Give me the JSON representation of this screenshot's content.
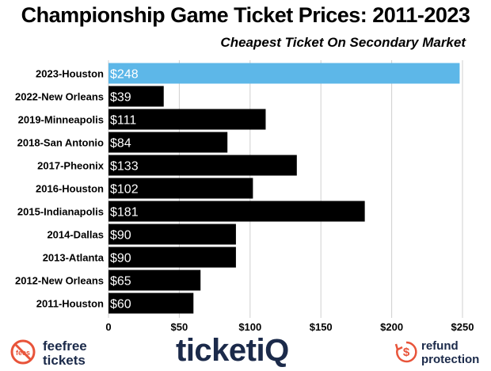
{
  "chart_data": {
    "type": "bar",
    "orientation": "horizontal",
    "title": "Championship Game Ticket Prices: 2011-2023",
    "subtitle": "Cheapest Ticket On Secondary Market",
    "categories": [
      "2023-Houston",
      "2022-New Orleans",
      "2019-Minneapolis",
      "2018-San Antonio",
      "2017-Pheonix",
      "2016-Houston",
      "2015-Indianapolis",
      "2014-Dallas",
      "2013-Atlanta",
      "2012-New Orleans",
      "2011-Houston"
    ],
    "values": [
      248,
      39,
      111,
      84,
      133,
      102,
      181,
      90,
      90,
      65,
      60
    ],
    "data_labels": [
      "$248",
      "$39",
      "$111",
      "$84",
      "$133",
      "$102",
      "$181",
      "$90",
      "$90",
      "$65",
      "$60"
    ],
    "xlim": [
      0,
      250
    ],
    "x_ticks": [
      0,
      50,
      100,
      150,
      200,
      250
    ],
    "x_tick_labels": [
      "0",
      "$50",
      "$100",
      "$150",
      "$200",
      "$250"
    ],
    "grid": true,
    "highlight_color": "#5db7e8",
    "bar_color": "#000000",
    "grid_color": "#cfcfcf"
  },
  "footer": {
    "feefree_line1": "feefree",
    "feefree_line2": "tickets",
    "feefree_badge": "fees",
    "ticketiq_logo": "ticketiQ",
    "refund_line1": "refund",
    "refund_line2": "protection"
  }
}
